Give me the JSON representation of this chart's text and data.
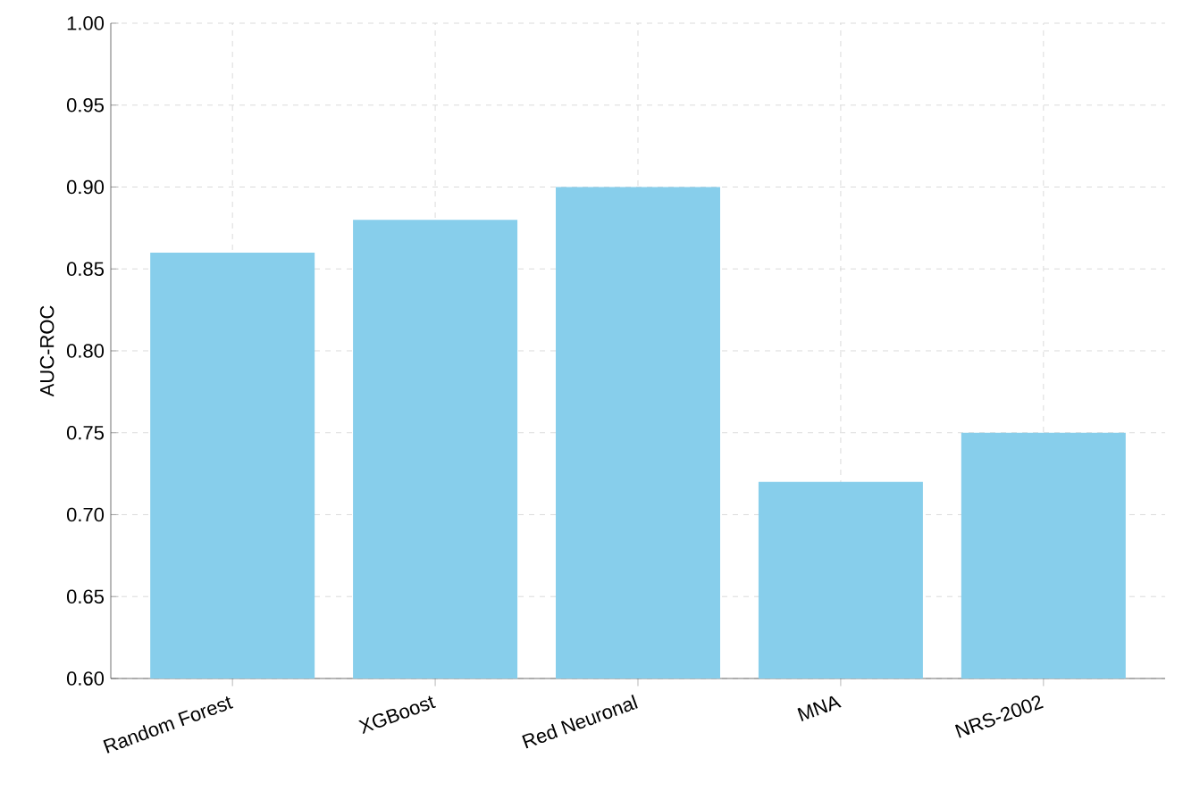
{
  "chart_data": {
    "type": "bar",
    "ylabel": "AUC-ROC",
    "categories": [
      "Random Forest",
      "XGBoost",
      "Red Neuronal",
      "MNA",
      "NRS-2002"
    ],
    "values": [
      0.86,
      0.88,
      0.9,
      0.72,
      0.75
    ],
    "color": "#87ceeb",
    "ylim": [
      0.6,
      1.0
    ],
    "yticks": [
      {
        "value": 0.6,
        "label": "0.60"
      },
      {
        "value": 0.65,
        "label": "0.65"
      },
      {
        "value": 0.7,
        "label": "0.70"
      },
      {
        "value": 0.75,
        "label": "0.75"
      },
      {
        "value": 0.8,
        "label": "0.80"
      },
      {
        "value": 0.85,
        "label": "0.85"
      },
      {
        "value": 0.9,
        "label": "0.90"
      },
      {
        "value": 0.95,
        "label": "0.95"
      },
      {
        "value": 1.0,
        "label": "1.00"
      }
    ],
    "grid": true
  }
}
